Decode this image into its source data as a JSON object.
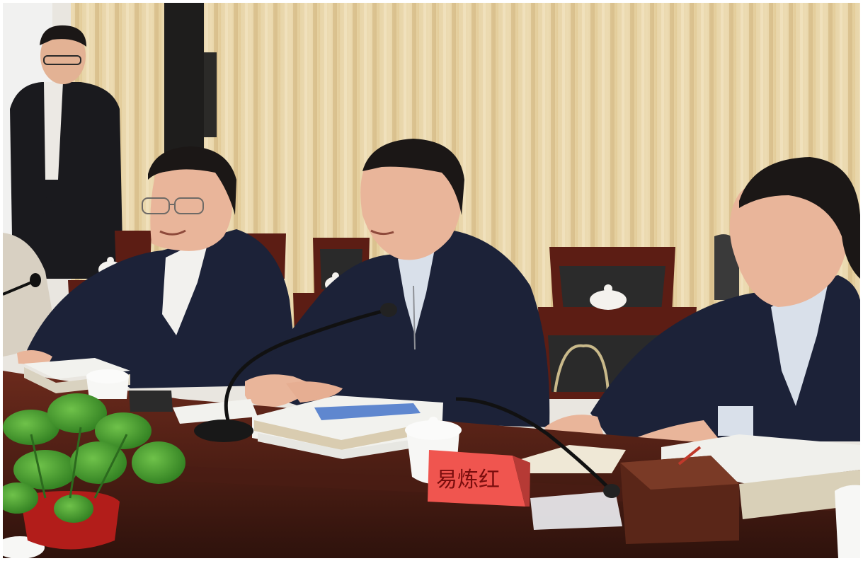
{
  "photo": {
    "nameplate_text": "易炼红",
    "palette": {
      "curtain": "#e7d3a6",
      "curtain_shadow": "#cdb27c",
      "table": "#3f1a12",
      "table_highlight": "#6b2a1c",
      "chair": "#5c1d14",
      "suit": "#1c2238",
      "skin": "#e9b59a",
      "hair": "#1b1716",
      "nameplate": "#f0554f",
      "plant": "#3e9a2e",
      "pot": "#b21d1a",
      "book_cover": "#f2f2ee",
      "book_spine": "#d9ccb0"
    }
  }
}
